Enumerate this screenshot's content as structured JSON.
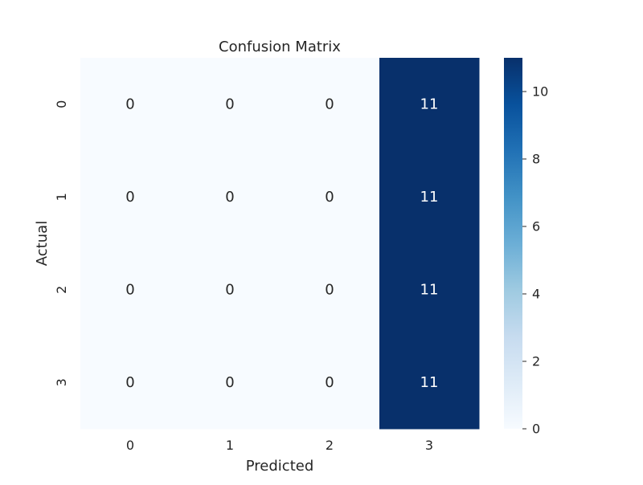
{
  "chart_data": {
    "type": "heatmap",
    "title": "Confusion Matrix",
    "xlabel": "Predicted",
    "ylabel": "Actual",
    "x_categories": [
      "0",
      "1",
      "2",
      "3"
    ],
    "y_categories": [
      "0",
      "1",
      "2",
      "3"
    ],
    "values": [
      [
        0,
        0,
        0,
        11
      ],
      [
        0,
        0,
        0,
        11
      ],
      [
        0,
        0,
        0,
        11
      ],
      [
        0,
        0,
        0,
        11
      ]
    ],
    "annotations": true,
    "colormap": "Blues",
    "colorbar": {
      "range": [
        0,
        11
      ],
      "ticks": [
        0,
        2,
        4,
        6,
        8,
        10
      ],
      "tick_labels": [
        "0",
        "2",
        "4",
        "6",
        "8",
        "10"
      ]
    },
    "colors": {
      "low": "#f7fbff",
      "high": "#08306b",
      "text_dark": "#262626",
      "text_light": "#ffffff"
    }
  }
}
